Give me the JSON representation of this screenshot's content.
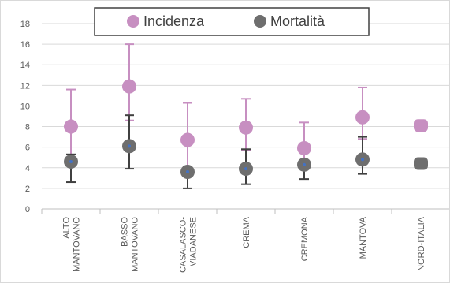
{
  "chart_data": {
    "type": "scatter",
    "title": "",
    "xlabel": "",
    "ylabel": "",
    "ylim": [
      0,
      18
    ],
    "yticks": [
      "0",
      "2",
      "4",
      "6",
      "8",
      "10",
      "12",
      "14",
      "16",
      "18"
    ],
    "categories": [
      [
        "ALTO",
        "MANTOVANO"
      ],
      [
        "BASSO",
        "MANTOVANO"
      ],
      [
        "CASALASCO-",
        "VIADANESE"
      ],
      [
        "CREMA"
      ],
      [
        "CREMONA"
      ],
      [
        "MANTOVA"
      ],
      [
        "NORD-ITALIA"
      ]
    ],
    "grid": true,
    "legend_position": "top",
    "series": [
      {
        "name": "Incidenza",
        "color": "#c78fc1",
        "marker": "circle",
        "values": [
          8.0,
          11.9,
          6.7,
          7.9,
          5.9,
          8.9,
          8.1
        ],
        "error_high": [
          11.6,
          16.0,
          10.3,
          10.7,
          8.4,
          11.8,
          null
        ],
        "error_low": [
          5.0,
          8.6,
          4.1,
          5.7,
          4.1,
          6.8,
          null
        ],
        "error_color": "#c78fc1"
      },
      {
        "name": "Mortalità",
        "color": "#6e6e6e",
        "marker": "circle",
        "values": [
          4.6,
          6.1,
          3.6,
          3.9,
          4.3,
          4.8,
          4.4
        ],
        "error_high": [
          5.3,
          9.1,
          4.1,
          5.8,
          4.6,
          7.0,
          null
        ],
        "error_low": [
          2.6,
          3.9,
          2.0,
          2.4,
          2.9,
          3.4,
          null
        ],
        "error_color": "#404040"
      }
    ]
  }
}
